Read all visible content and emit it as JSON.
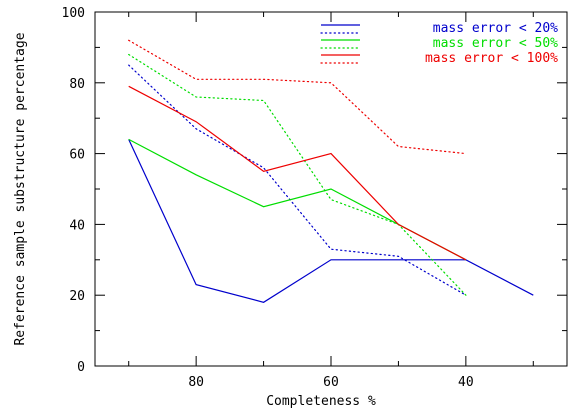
{
  "chart_data": {
    "type": "line",
    "title": "",
    "xlabel": "Completeness %",
    "ylabel": "Reference sample substructure percentage",
    "xlim": [
      95,
      25
    ],
    "ylim": [
      0,
      100
    ],
    "x_ticks": [
      80,
      60,
      40
    ],
    "y_ticks": [
      0,
      20,
      40,
      60,
      80,
      100
    ],
    "grid": false,
    "legend_position": "top-right",
    "series": [
      {
        "name": "mass error < 20%",
        "color": "#0000cc",
        "style": "solid",
        "points": [
          [
            90,
            64
          ],
          [
            80,
            23
          ],
          [
            70,
            18
          ],
          [
            60,
            30
          ],
          [
            40,
            30
          ],
          [
            30,
            20
          ]
        ]
      },
      {
        "name": "mass error < 20%",
        "color": "#0000cc",
        "style": "dotted",
        "legend": false,
        "points": [
          [
            90,
            85
          ],
          [
            80,
            67
          ],
          [
            70,
            56
          ],
          [
            60,
            33
          ],
          [
            50,
            31
          ],
          [
            40,
            20
          ]
        ]
      },
      {
        "name": "mass error < 50%",
        "color": "#00dd00",
        "style": "solid",
        "points": [
          [
            90,
            64
          ],
          [
            80,
            54
          ],
          [
            70,
            45
          ],
          [
            60,
            50
          ],
          [
            50,
            40
          ],
          [
            40,
            30
          ]
        ]
      },
      {
        "name": "mass error < 50%",
        "color": "#00dd00",
        "style": "dotted",
        "legend": false,
        "points": [
          [
            90,
            88
          ],
          [
            80,
            76
          ],
          [
            70,
            75
          ],
          [
            60,
            47
          ],
          [
            50,
            40
          ],
          [
            40,
            20
          ]
        ]
      },
      {
        "name": "mass error < 100%",
        "color": "#ee0000",
        "style": "solid",
        "points": [
          [
            90,
            79
          ],
          [
            80,
            69
          ],
          [
            70,
            55
          ],
          [
            60,
            60
          ],
          [
            50,
            40
          ],
          [
            40,
            30
          ]
        ]
      },
      {
        "name": "mass error < 100%",
        "color": "#ee0000",
        "style": "dotted",
        "legend": false,
        "points": [
          [
            90,
            92
          ],
          [
            80,
            81
          ],
          [
            70,
            81
          ],
          [
            60,
            80
          ],
          [
            50,
            62
          ],
          [
            40,
            60
          ]
        ]
      }
    ]
  }
}
